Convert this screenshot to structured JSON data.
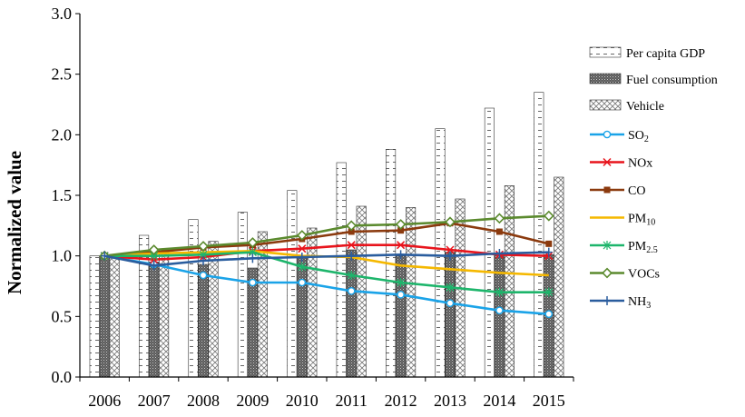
{
  "chart_data": {
    "type": "bar",
    "categories": [
      "2006",
      "2007",
      "2008",
      "2009",
      "2010",
      "2011",
      "2012",
      "2013",
      "2014",
      "2015"
    ],
    "ylabel": "Normalized value",
    "xlabel": "",
    "ylim": [
      0,
      3.0
    ],
    "y_ticks": [
      "0.0",
      "0.5",
      "1.0",
      "1.5",
      "2.0",
      "2.5",
      "3.0"
    ],
    "grid": false,
    "legend_position": "right",
    "bar_series": [
      {
        "key": "gdp",
        "name": "Per capita GDP",
        "pattern": "dashed-white",
        "values": [
          1.0,
          1.17,
          1.3,
          1.36,
          1.54,
          1.77,
          1.88,
          2.05,
          2.22,
          2.35
        ]
      },
      {
        "key": "fuel",
        "name": "Fuel consumption",
        "pattern": "dotted-gray",
        "values": [
          1.0,
          0.95,
          0.93,
          0.9,
          1.0,
          1.05,
          1.0,
          1.03,
          1.02,
          1.01
        ]
      },
      {
        "key": "vehicle",
        "name": "Vehicle",
        "pattern": "crosshatch",
        "values": [
          1.0,
          1.05,
          1.12,
          1.2,
          1.23,
          1.41,
          1.4,
          1.47,
          1.58,
          1.65
        ]
      }
    ],
    "line_series": [
      {
        "key": "so2",
        "name": "SO",
        "sub": "2",
        "color": "#1aa3e8",
        "marker": "circle",
        "values": [
          1.0,
          0.93,
          0.84,
          0.78,
          0.78,
          0.71,
          0.68,
          0.61,
          0.55,
          0.52
        ]
      },
      {
        "key": "nox",
        "name": "NOx",
        "sub": "",
        "color": "#e8141c",
        "marker": "x",
        "values": [
          1.0,
          0.97,
          0.99,
          1.04,
          1.06,
          1.09,
          1.09,
          1.05,
          1.01,
          1.0
        ]
      },
      {
        "key": "co",
        "name": "CO",
        "sub": "",
        "color": "#8b3a0e",
        "marker": "square",
        "values": [
          1.0,
          1.03,
          1.07,
          1.09,
          1.14,
          1.2,
          1.21,
          1.27,
          1.2,
          1.1
        ]
      },
      {
        "key": "pm10",
        "name": "PM",
        "sub": "10",
        "color": "#f5b800",
        "marker": "none",
        "values": [
          1.0,
          1.02,
          1.03,
          1.04,
          1.0,
          0.99,
          0.92,
          0.89,
          0.86,
          0.84
        ]
      },
      {
        "key": "pm25",
        "name": "PM",
        "sub": "2.5",
        "color": "#1db56b",
        "marker": "asterisk",
        "values": [
          1.0,
          1.0,
          1.01,
          1.03,
          0.91,
          0.84,
          0.78,
          0.74,
          0.7,
          0.7
        ]
      },
      {
        "key": "vocs",
        "name": "VOCs",
        "sub": "",
        "color": "#5b8a2e",
        "marker": "diamond",
        "values": [
          1.0,
          1.05,
          1.08,
          1.11,
          1.17,
          1.25,
          1.26,
          1.28,
          1.31,
          1.33
        ]
      },
      {
        "key": "nh3",
        "name": "NH",
        "sub": "3",
        "color": "#2a5d9e",
        "marker": "plus",
        "values": [
          1.0,
          0.92,
          0.96,
          0.98,
          0.99,
          1.0,
          1.01,
          1.0,
          1.02,
          1.03
        ]
      }
    ]
  }
}
